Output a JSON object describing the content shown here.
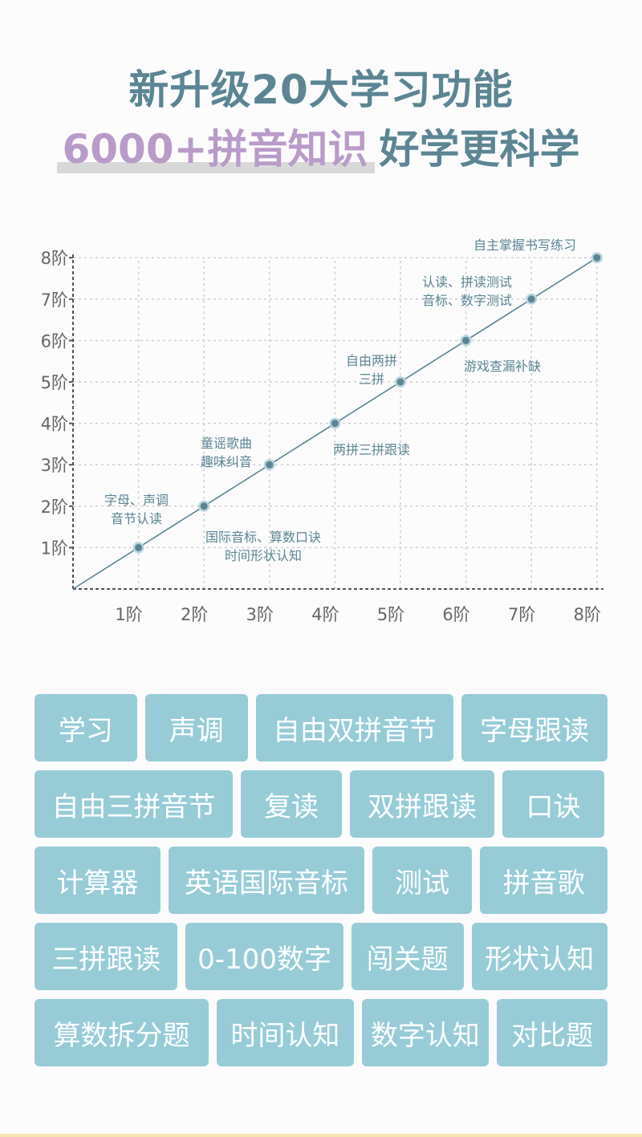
{
  "header": {
    "line1": "新升级20大学习功能",
    "line2_highlight": "6000+拼音知识",
    "line2_rest": "好学更科学"
  },
  "chart_data": {
    "type": "line",
    "x": [
      0,
      1,
      2,
      3,
      4,
      5,
      6,
      7,
      8
    ],
    "y": [
      0,
      1,
      2,
      3,
      4,
      5,
      6,
      7,
      8
    ],
    "xlim": [
      0,
      8
    ],
    "ylim": [
      0,
      8
    ],
    "x_tick_labels": [
      "1阶",
      "2阶",
      "3阶",
      "4阶",
      "5阶",
      "6阶",
      "7阶",
      "8阶"
    ],
    "y_tick_labels": [
      "1阶",
      "2阶",
      "3阶",
      "4阶",
      "5阶",
      "6阶",
      "7阶",
      "8阶"
    ],
    "grid": true,
    "line_color": "#5b8593",
    "point_color": "#5b8593",
    "annotations": [
      {
        "x": 1,
        "lines": [
          "字母、声调",
          "音节认读"
        ]
      },
      {
        "x": 2,
        "lines": [
          "国际音标、算数口诀",
          "时间形状认知"
        ]
      },
      {
        "x": 3,
        "lines": [
          "童谣歌曲",
          "趣味纠音"
        ]
      },
      {
        "x": 4,
        "lines": [
          "两拼三拼跟读"
        ]
      },
      {
        "x": 5,
        "lines": [
          "自由两拼",
          "三拼"
        ]
      },
      {
        "x": 6,
        "lines": [
          "游戏查漏补缺"
        ]
      },
      {
        "x": 7,
        "lines": [
          "认读、拼读测试",
          "音标、数字测试"
        ]
      },
      {
        "x": 8,
        "lines": [
          "自主掌握书写练习"
        ]
      }
    ]
  },
  "tags": [
    [
      "学习",
      "声调",
      "自由双拼音节",
      "字母跟读"
    ],
    [
      "自由三拼音节",
      "复读",
      "双拼跟读",
      "口诀"
    ],
    [
      "计算器",
      "英语国际音标",
      "测试",
      "拼音歌"
    ],
    [
      "三拼跟读",
      "0-100数字",
      "闯关题",
      "形状认知"
    ],
    [
      "算数拆分题",
      "时间认知",
      "数字认知",
      "对比题"
    ]
  ],
  "colors": {
    "title": "#5b8593",
    "highlight": "#b99bc9",
    "tag_bg": "#97ccd7",
    "tag_text": "#ffffff"
  }
}
